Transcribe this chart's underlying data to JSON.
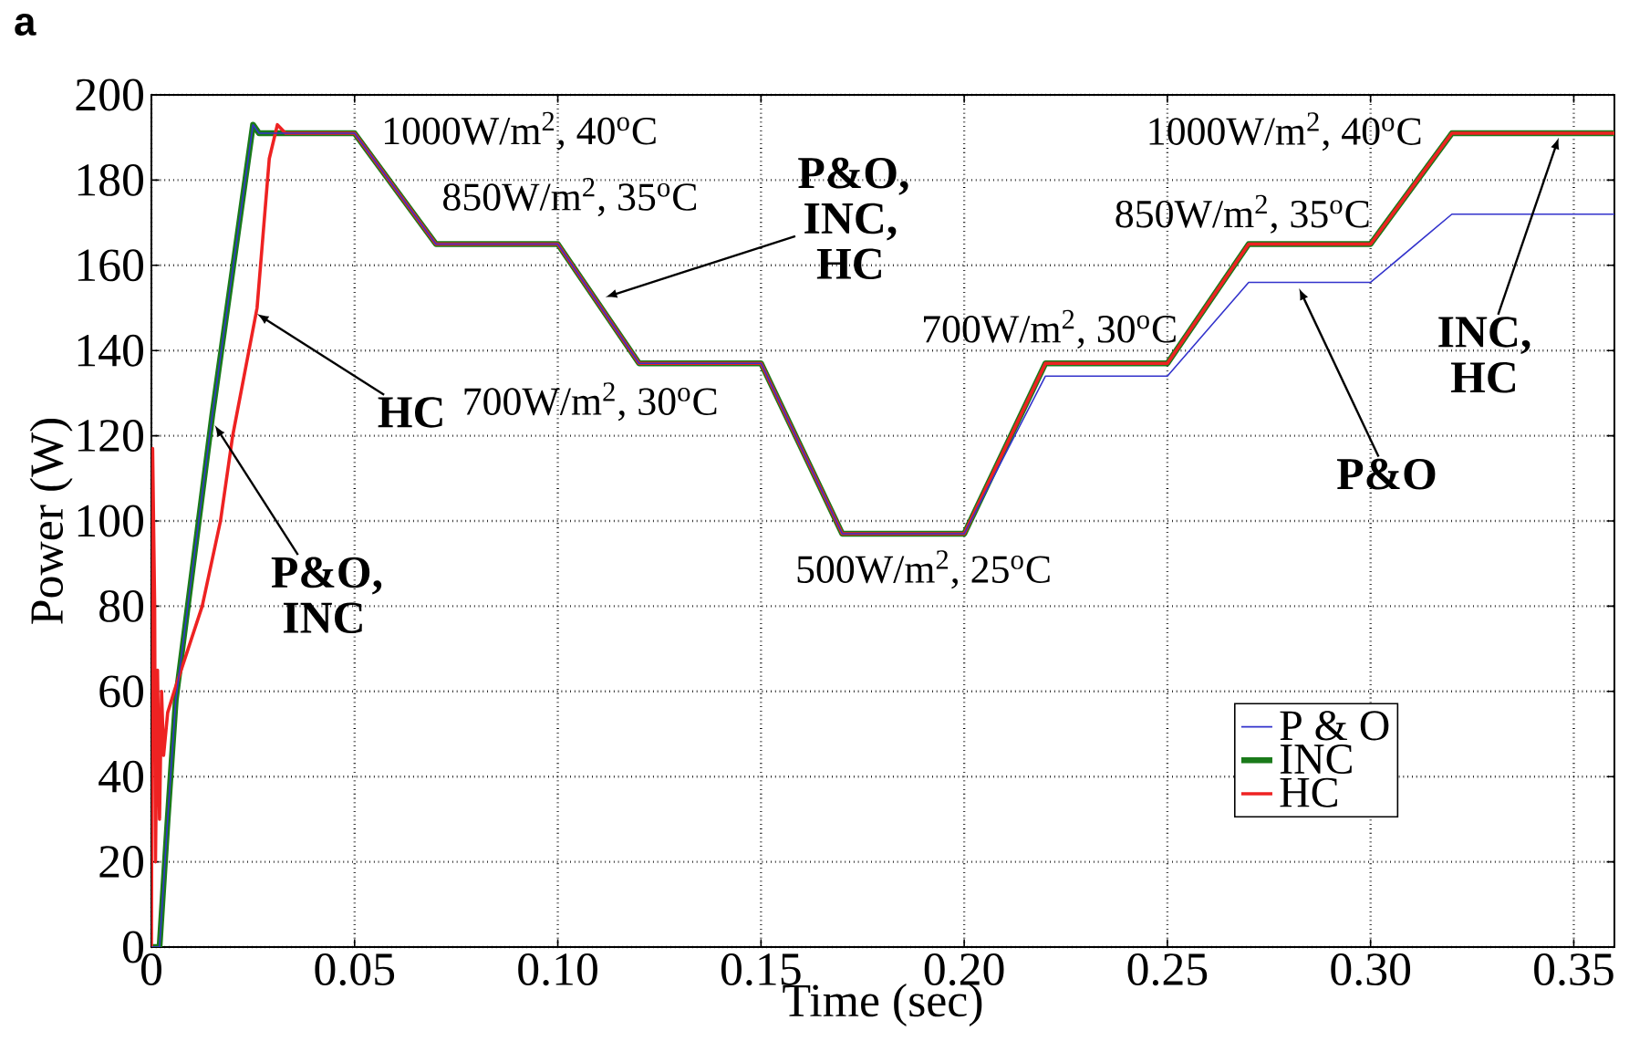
{
  "chart_data": {
    "type": "line",
    "xlabel": "Time (sec)",
    "ylabel": "Power (W)",
    "xlim": [
      0,
      0.36
    ],
    "ylim": [
      0,
      200
    ],
    "xticks": [
      0,
      0.05,
      {
        "value": 0.1,
        "label": "0.10"
      },
      0.15,
      {
        "value": 0.2,
        "label": "0.20"
      },
      0.25,
      {
        "value": 0.3,
        "label": "0.30"
      },
      0.35
    ],
    "yticks": [
      0,
      20,
      40,
      60,
      80,
      100,
      120,
      140,
      160,
      180,
      200
    ],
    "grid": true,
    "legend": "bottom right",
    "series": [
      {
        "name": "P & O",
        "color": "#3333cc",
        "x": [
          0,
          0.002,
          0.004,
          0.006,
          0.015,
          0.025,
          0.0265,
          0.05,
          0.07,
          0.1,
          0.12,
          0.15,
          0.17,
          0.2,
          0.22,
          0.25,
          0.27,
          0.3,
          0.32,
          0.36
        ],
        "values": [
          0,
          0,
          30,
          58,
          125,
          193,
          191,
          191,
          165,
          165,
          137,
          137,
          97,
          97,
          134,
          134,
          156,
          156,
          172,
          172
        ]
      },
      {
        "name": "INC",
        "color": "#1a7a1a",
        "x": [
          0,
          0.002,
          0.004,
          0.006,
          0.015,
          0.025,
          0.0265,
          0.05,
          0.07,
          0.1,
          0.12,
          0.15,
          0.17,
          0.2,
          0.22,
          0.25,
          0.27,
          0.3,
          0.32,
          0.36
        ],
        "values": [
          0,
          0,
          30,
          58,
          125,
          193,
          191,
          191,
          165,
          165,
          137,
          137,
          97,
          97,
          137,
          137,
          165,
          165,
          191,
          191
        ]
      },
      {
        "name": "HC",
        "color": "#ee2222",
        "x": [
          0,
          0.0003,
          0.0008,
          0.001,
          0.0015,
          0.002,
          0.0025,
          0.003,
          0.004,
          0.0056,
          0.0125,
          0.017,
          0.02,
          0.026,
          0.029,
          0.031,
          0.033,
          0.05,
          0.07,
          0.1,
          0.12,
          0.15,
          0.17,
          0.2,
          0.22,
          0.25,
          0.27,
          0.3,
          0.32,
          0.36
        ],
        "values": [
          0,
          117,
          80,
          20,
          65,
          30,
          60,
          45,
          55,
          60,
          80,
          100,
          120,
          150,
          185,
          193,
          191,
          191,
          165,
          165,
          137,
          137,
          97,
          97,
          137,
          137,
          165,
          165,
          191,
          191
        ]
      }
    ],
    "annotations": [
      "a",
      "1000W/m$^{2}$, 40$^{o}$C",
      "850W/m$^{2}$, 35$^{o}$C",
      "700W/m$^{2}$, 30$^{o}$C",
      "500W/m$^{2}$, 25$^{o}$C",
      "700W/m$^{2}$, 30$^{o}$C",
      "850W/m$^{2}$, 35$^{o}$C",
      "1000W/m$^{2}$, 40$^{o}$C",
      {
        "text": "HC",
        "x": 0.026,
        "y": 148.6
      },
      {
        "text": "P&O, INC",
        "x": 0.0156,
        "y": 122.5
      },
      {
        "text": "P&O, INC, HC",
        "x": 0.1117,
        "y": 152.5
      },
      {
        "text": "P&O",
        "x": 0.2824,
        "y": 154.6
      },
      {
        "text": "INC, HC",
        "x": 0.3463,
        "y": 190
      }
    ]
  }
}
